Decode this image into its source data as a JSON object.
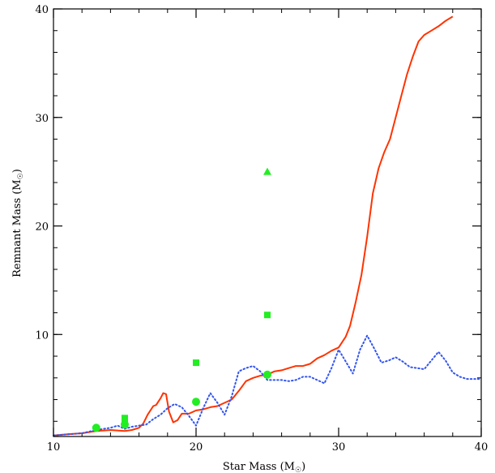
{
  "chart_data": {
    "type": "line",
    "title": "",
    "xlabel": {
      "text": "Star Mass (M",
      "sub": "☉",
      "close": ")"
    },
    "ylabel": {
      "text": "Remnant Mass (M",
      "sub": "☉",
      "close": ")"
    },
    "xlim": [
      10,
      40
    ],
    "ylim": [
      0.6,
      40
    ],
    "x_ticks": [
      10,
      20,
      30,
      40
    ],
    "y_ticks": [
      10,
      20,
      30,
      40
    ],
    "grid": false,
    "series": [
      {
        "style": "solid",
        "color": "#ff3300",
        "points": [
          [
            10,
            0.7
          ],
          [
            11,
            0.8
          ],
          [
            12,
            0.9
          ],
          [
            13,
            1.1
          ],
          [
            14,
            1.2
          ],
          [
            15,
            1.1
          ],
          [
            15.5,
            1.2
          ],
          [
            16,
            1.4
          ],
          [
            16.3,
            1.8
          ],
          [
            16.6,
            2.6
          ],
          [
            17,
            3.4
          ],
          [
            17.2,
            3.5
          ],
          [
            17.5,
            4.1
          ],
          [
            17.7,
            4.6
          ],
          [
            17.9,
            4.5
          ],
          [
            18.1,
            2.9
          ],
          [
            18.4,
            1.9
          ],
          [
            18.7,
            2.1
          ],
          [
            19,
            2.7
          ],
          [
            19.5,
            2.7
          ],
          [
            20,
            3.0
          ],
          [
            20.5,
            3.1
          ],
          [
            21,
            3.3
          ],
          [
            21.5,
            3.4
          ],
          [
            22,
            3.7
          ],
          [
            22.5,
            4.0
          ],
          [
            23,
            4.8
          ],
          [
            23.5,
            5.7
          ],
          [
            24,
            6.0
          ],
          [
            24.5,
            6.2
          ],
          [
            25,
            6.3
          ],
          [
            25.5,
            6.6
          ],
          [
            26,
            6.7
          ],
          [
            26.5,
            6.9
          ],
          [
            27,
            7.1
          ],
          [
            27.5,
            7.1
          ],
          [
            28,
            7.3
          ],
          [
            28.5,
            7.8
          ],
          [
            29,
            8.1
          ],
          [
            29.5,
            8.5
          ],
          [
            30,
            8.8
          ],
          [
            30.5,
            9.8
          ],
          [
            30.8,
            10.8
          ],
          [
            31.2,
            13.0
          ],
          [
            31.6,
            15.5
          ],
          [
            32.0,
            19.0
          ],
          [
            32.4,
            23.0
          ],
          [
            32.8,
            25.3
          ],
          [
            33.2,
            26.8
          ],
          [
            33.6,
            28.0
          ],
          [
            34,
            30.0
          ],
          [
            34.4,
            32.0
          ],
          [
            34.8,
            34.0
          ],
          [
            35.2,
            35.6
          ],
          [
            35.6,
            37.0
          ],
          [
            36,
            37.6
          ],
          [
            36.5,
            38.0
          ],
          [
            37,
            38.4
          ],
          [
            37.5,
            38.9
          ],
          [
            38,
            39.3
          ]
        ]
      },
      {
        "style": "dotted",
        "color": "#3355ee",
        "points": [
          [
            10,
            0.7
          ],
          [
            11,
            0.8
          ],
          [
            12,
            0.9
          ],
          [
            13,
            1.2
          ],
          [
            14,
            1.4
          ],
          [
            14.5,
            1.6
          ],
          [
            15,
            1.3
          ],
          [
            15.5,
            1.5
          ],
          [
            16,
            1.6
          ],
          [
            16.5,
            1.7
          ],
          [
            17,
            2.2
          ],
          [
            17.5,
            2.6
          ],
          [
            18,
            3.2
          ],
          [
            18.5,
            3.6
          ],
          [
            19,
            3.3
          ],
          [
            19.5,
            2.5
          ],
          [
            20,
            1.6
          ],
          [
            20.5,
            3.2
          ],
          [
            21,
            4.6
          ],
          [
            21.5,
            3.7
          ],
          [
            22,
            2.6
          ],
          [
            22.5,
            4.3
          ],
          [
            23,
            6.6
          ],
          [
            23.5,
            6.9
          ],
          [
            24,
            7.1
          ],
          [
            24.5,
            6.6
          ],
          [
            25,
            5.8
          ],
          [
            25.5,
            5.8
          ],
          [
            26,
            5.8
          ],
          [
            26.5,
            5.7
          ],
          [
            27,
            5.8
          ],
          [
            27.5,
            6.1
          ],
          [
            28,
            6.1
          ],
          [
            28.5,
            5.8
          ],
          [
            29,
            5.5
          ],
          [
            29.5,
            6.9
          ],
          [
            30,
            8.6
          ],
          [
            30.5,
            7.5
          ],
          [
            31,
            6.4
          ],
          [
            31.5,
            8.6
          ],
          [
            32,
            9.9
          ],
          [
            32.5,
            8.7
          ],
          [
            33,
            7.4
          ],
          [
            33.5,
            7.6
          ],
          [
            34,
            7.9
          ],
          [
            34.5,
            7.5
          ],
          [
            35,
            7.0
          ],
          [
            35.5,
            6.9
          ],
          [
            36,
            6.8
          ],
          [
            36.5,
            7.6
          ],
          [
            37,
            8.4
          ],
          [
            37.5,
            7.6
          ],
          [
            38,
            6.5
          ],
          [
            38.5,
            6.1
          ],
          [
            39,
            5.9
          ],
          [
            39.5,
            5.9
          ],
          [
            40,
            5.9
          ]
        ]
      }
    ],
    "markers": [
      {
        "shape": "circle",
        "color": "#22ee22",
        "x": 13,
        "y": 1.4
      },
      {
        "shape": "circle",
        "color": "#22ee22",
        "x": 15,
        "y": 1.7
      },
      {
        "shape": "circle",
        "color": "#22ee22",
        "x": 20,
        "y": 3.8
      },
      {
        "shape": "circle",
        "color": "#22ee22",
        "x": 25,
        "y": 6.3
      },
      {
        "shape": "square",
        "color": "#22ee22",
        "x": 15,
        "y": 2.3
      },
      {
        "shape": "square",
        "color": "#22ee22",
        "x": 15,
        "y": 1.9
      },
      {
        "shape": "square",
        "color": "#22ee22",
        "x": 20,
        "y": 7.4
      },
      {
        "shape": "square",
        "color": "#22ee22",
        "x": 25,
        "y": 11.8
      },
      {
        "shape": "triangle",
        "color": "#22ee22",
        "x": 25,
        "y": 25.0
      }
    ]
  }
}
